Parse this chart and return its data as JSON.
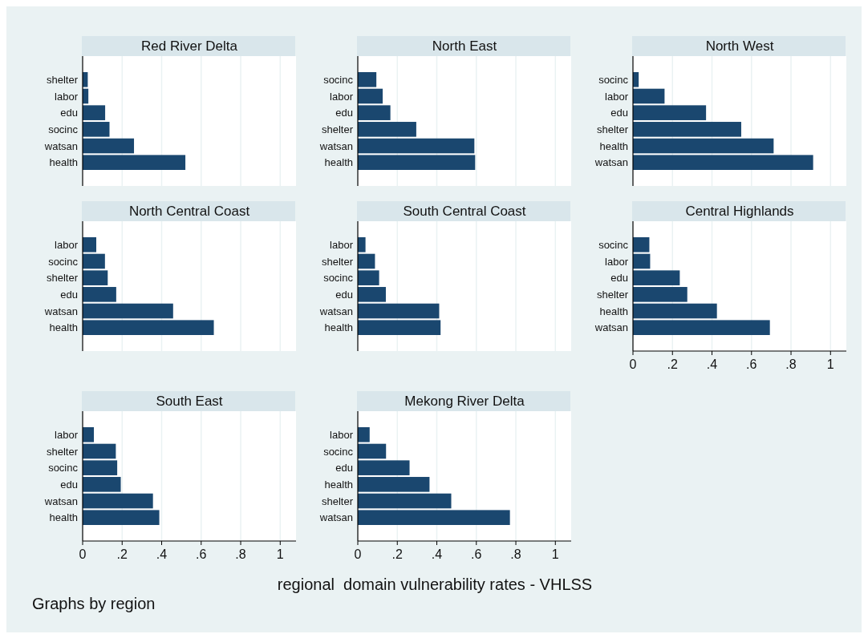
{
  "chart_data": [
    {
      "type": "bar",
      "orientation": "horizontal",
      "title": "Red River Delta",
      "categories": [
        "shelter",
        "labor",
        "edu",
        "socinc",
        "watsan",
        "health"
      ],
      "values": [
        0.026,
        0.029,
        0.114,
        0.136,
        0.26,
        0.52
      ],
      "color": "#1a476f",
      "xlim": [
        0,
        1.08
      ],
      "xticks": [
        {
          "value": 0.2,
          "label": null
        },
        {
          "value": 0.4,
          "label": null
        },
        {
          "value": 0.6,
          "label": null
        },
        {
          "value": 0.8,
          "label": null
        },
        {
          "value": 1,
          "label": null
        }
      ],
      "grid": "x",
      "tick_labels": "y"
    },
    {
      "type": "bar",
      "orientation": "horizontal",
      "title": "North East",
      "categories": [
        "socinc",
        "labor",
        "edu",
        "shelter",
        "watsan",
        "health"
      ],
      "values": [
        0.094,
        0.126,
        0.165,
        0.296,
        0.59,
        0.594
      ],
      "color": "#1a476f",
      "xlim": [
        0,
        1.08
      ],
      "xticks": [
        {
          "value": 0.2,
          "label": null
        },
        {
          "value": 0.4,
          "label": null
        },
        {
          "value": 0.6,
          "label": null
        },
        {
          "value": 0.8,
          "label": null
        },
        {
          "value": 1,
          "label": null
        }
      ],
      "grid": "x",
      "tick_labels": "y"
    },
    {
      "type": "bar",
      "orientation": "horizontal",
      "title": "North West",
      "categories": [
        "socinc",
        "labor",
        "edu",
        "shelter",
        "health",
        "watsan"
      ],
      "values": [
        0.029,
        0.16,
        0.37,
        0.548,
        0.712,
        0.912
      ],
      "color": "#1a476f",
      "xlim": [
        0,
        1.08
      ],
      "xticks": [
        {
          "value": 0.2,
          "label": null
        },
        {
          "value": 0.4,
          "label": null
        },
        {
          "value": 0.6,
          "label": null
        },
        {
          "value": 0.8,
          "label": null
        },
        {
          "value": 1,
          "label": null
        }
      ],
      "grid": "x",
      "tick_labels": "y"
    },
    {
      "type": "bar",
      "orientation": "horizontal",
      "title": "North Central Coast",
      "categories": [
        "labor",
        "socinc",
        "shelter",
        "edu",
        "watsan",
        "health"
      ],
      "values": [
        0.069,
        0.113,
        0.127,
        0.17,
        0.458,
        0.664
      ],
      "color": "#1a476f",
      "xlim": [
        0,
        1.08
      ],
      "xticks": [
        {
          "value": 0.2,
          "label": null
        },
        {
          "value": 0.4,
          "label": null
        },
        {
          "value": 0.6,
          "label": null
        },
        {
          "value": 0.8,
          "label": null
        },
        {
          "value": 1,
          "label": null
        }
      ],
      "grid": "x",
      "tick_labels": "y"
    },
    {
      "type": "bar",
      "orientation": "horizontal",
      "title": "South Central Coast",
      "categories": [
        "labor",
        "shelter",
        "socinc",
        "edu",
        "watsan",
        "health"
      ],
      "values": [
        0.039,
        0.087,
        0.108,
        0.142,
        0.412,
        0.419
      ],
      "color": "#1a476f",
      "xlim": [
        0,
        1.08
      ],
      "xticks": [
        {
          "value": 0.2,
          "label": null
        },
        {
          "value": 0.4,
          "label": null
        },
        {
          "value": 0.6,
          "label": null
        },
        {
          "value": 0.8,
          "label": null
        },
        {
          "value": 1,
          "label": null
        }
      ],
      "grid": "x",
      "tick_labels": "y"
    },
    {
      "type": "bar",
      "orientation": "horizontal",
      "title": "Central Highlands",
      "categories": [
        "socinc",
        "labor",
        "edu",
        "shelter",
        "health",
        "watsan"
      ],
      "values": [
        0.083,
        0.087,
        0.237,
        0.275,
        0.425,
        0.693
      ],
      "color": "#1a476f",
      "xlim": [
        0,
        1.08
      ],
      "xticks": [
        {
          "value": 0,
          "label": "0"
        },
        {
          "value": 0.2,
          "label": ".2"
        },
        {
          "value": 0.4,
          "label": ".4"
        },
        {
          "value": 0.6,
          "label": ".6"
        },
        {
          "value": 0.8,
          "label": ".8"
        },
        {
          "value": 1,
          "label": "1"
        }
      ],
      "grid": "x"
    },
    {
      "type": "bar",
      "orientation": "horizontal",
      "title": "South East",
      "categories": [
        "labor",
        "shelter",
        "socinc",
        "edu",
        "watsan",
        "health"
      ],
      "values": [
        0.057,
        0.168,
        0.175,
        0.193,
        0.356,
        0.388
      ],
      "color": "#1a476f",
      "xlim": [
        0,
        1.08
      ],
      "xticks": [
        {
          "value": 0,
          "label": "0"
        },
        {
          "value": 0.2,
          "label": ".2"
        },
        {
          "value": 0.4,
          "label": ".4"
        },
        {
          "value": 0.6,
          "label": ".6"
        },
        {
          "value": 0.8,
          "label": ".8"
        },
        {
          "value": 1,
          "label": "1"
        }
      ],
      "grid": "x"
    },
    {
      "type": "bar",
      "orientation": "horizontal",
      "title": "Mekong River Delta",
      "categories": [
        "labor",
        "socinc",
        "edu",
        "health",
        "shelter",
        "watsan"
      ],
      "values": [
        0.06,
        0.143,
        0.262,
        0.363,
        0.473,
        0.77
      ],
      "color": "#1a476f",
      "xlim": [
        0,
        1.08
      ],
      "xticks": [
        {
          "value": 0,
          "label": "0"
        },
        {
          "value": 0.2,
          "label": ".2"
        },
        {
          "value": 0.4,
          "label": ".4"
        },
        {
          "value": 0.6,
          "label": ".6"
        },
        {
          "value": 0.8,
          "label": ".8"
        },
        {
          "value": 1,
          "label": "1"
        }
      ],
      "grid": "x"
    },
    {
      "type": "other",
      "xlabel": "regional  domain vulnerability rates - VHLSS",
      "annotations": [
        "Graphs by region"
      ]
    }
  ]
}
